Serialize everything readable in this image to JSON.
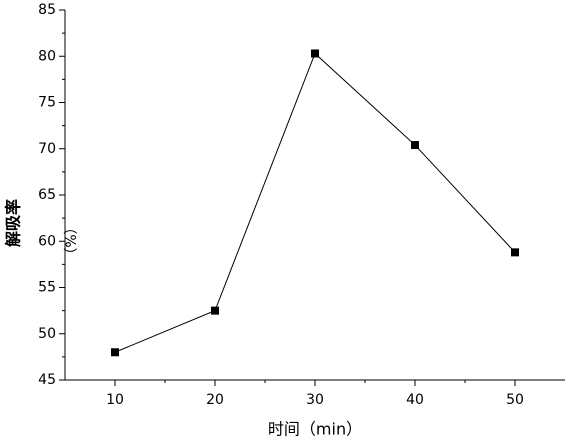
{
  "chart_data": {
    "type": "line",
    "x_label": "时间（min）",
    "y_label": "解吸率",
    "y_label_unit": "（%）",
    "x": [
      10,
      20,
      30,
      40,
      50
    ],
    "series": [
      {
        "color": "#000000",
        "marker": "square",
        "values": [
          48,
          52.5,
          80.3,
          70.4,
          58.8
        ]
      }
    ],
    "xlim": [
      5,
      55
    ],
    "xticks": [
      10,
      20,
      30,
      40,
      50
    ],
    "ylim": [
      45,
      85
    ],
    "yticks": [
      45,
      50,
      55,
      60,
      65,
      70,
      75,
      80,
      85
    ],
    "grid": false
  }
}
